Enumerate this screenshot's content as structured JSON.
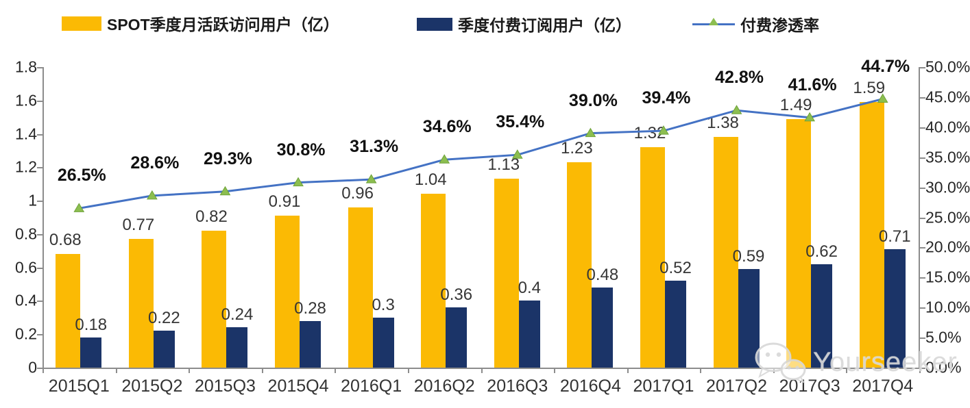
{
  "legend": {
    "mau_label": "SPOT季度月活跃访问用户（亿）",
    "sub_label": "季度付费订阅用户（亿）",
    "penetration_label": "付费渗透率"
  },
  "watermark": {
    "text": "Yourseeker",
    "icon": "wechat-icon"
  },
  "colors": {
    "mau_bar": "#FBBA04",
    "sub_bar": "#1B3468",
    "penetration_line": "#4472C4",
    "penetration_marker": "#8CBE50",
    "axis": "#8c8c8c"
  },
  "chart_data": {
    "type": "bar",
    "subtype": "combo-bar-line",
    "categories": [
      "2015Q1",
      "2015Q2",
      "2015Q3",
      "2015Q4",
      "2016Q1",
      "2016Q2",
      "2016Q3",
      "2016Q4",
      "2017Q1",
      "2017Q2",
      "2017Q3",
      "2017Q4"
    ],
    "series": [
      {
        "name": "SPOT季度月活跃访问用户（亿）",
        "type": "bar",
        "axis": "left",
        "color": "#FBBA04",
        "values": [
          0.68,
          0.77,
          0.82,
          0.91,
          0.96,
          1.04,
          1.13,
          1.23,
          1.32,
          1.38,
          1.49,
          1.59
        ],
        "labels": [
          "0.68",
          "0.77",
          "0.82",
          "0.91",
          "0.96",
          "1.04",
          "1.13",
          "1.23",
          "1.32",
          "1.38",
          "1.49",
          "1.59"
        ]
      },
      {
        "name": "季度付费订阅用户（亿）",
        "type": "bar",
        "axis": "left",
        "color": "#1B3468",
        "values": [
          0.18,
          0.22,
          0.24,
          0.28,
          0.3,
          0.36,
          0.4,
          0.48,
          0.52,
          0.59,
          0.62,
          0.71
        ],
        "labels": [
          "0.18",
          "0.22",
          "0.24",
          "0.28",
          "0.3",
          "0.36",
          "0.4",
          "0.48",
          "0.52",
          "0.59",
          "0.62",
          "0.71"
        ]
      },
      {
        "name": "付费渗透率",
        "type": "line",
        "axis": "right",
        "color": "#4472C4",
        "marker": "triangle",
        "marker_color": "#8CBE50",
        "values": [
          26.5,
          28.6,
          29.3,
          30.8,
          31.3,
          34.6,
          35.4,
          39.0,
          39.4,
          42.8,
          41.6,
          44.7
        ],
        "labels": [
          "26.5%",
          "28.6%",
          "29.3%",
          "30.8%",
          "31.3%",
          "34.6%",
          "35.4%",
          "39.0%",
          "39.4%",
          "42.8%",
          "41.6%",
          "44.7%"
        ]
      }
    ],
    "left_axis": {
      "min": 0,
      "max": 1.8,
      "step": 0.2,
      "ticks": [
        "1.8",
        "1.6",
        "1.4",
        "1.2",
        "1",
        "0.8",
        "0.6",
        "0.4",
        "0.2",
        "0"
      ]
    },
    "right_axis": {
      "min": 0,
      "max": 50,
      "step": 5,
      "ticks": [
        "50.0%",
        "45.0%",
        "40.0%",
        "35.0%",
        "30.0%",
        "25.0%",
        "20.0%",
        "15.0%",
        "10.0%",
        "5.0%",
        "0.0%"
      ]
    },
    "grid": false,
    "legend_position": "top"
  }
}
